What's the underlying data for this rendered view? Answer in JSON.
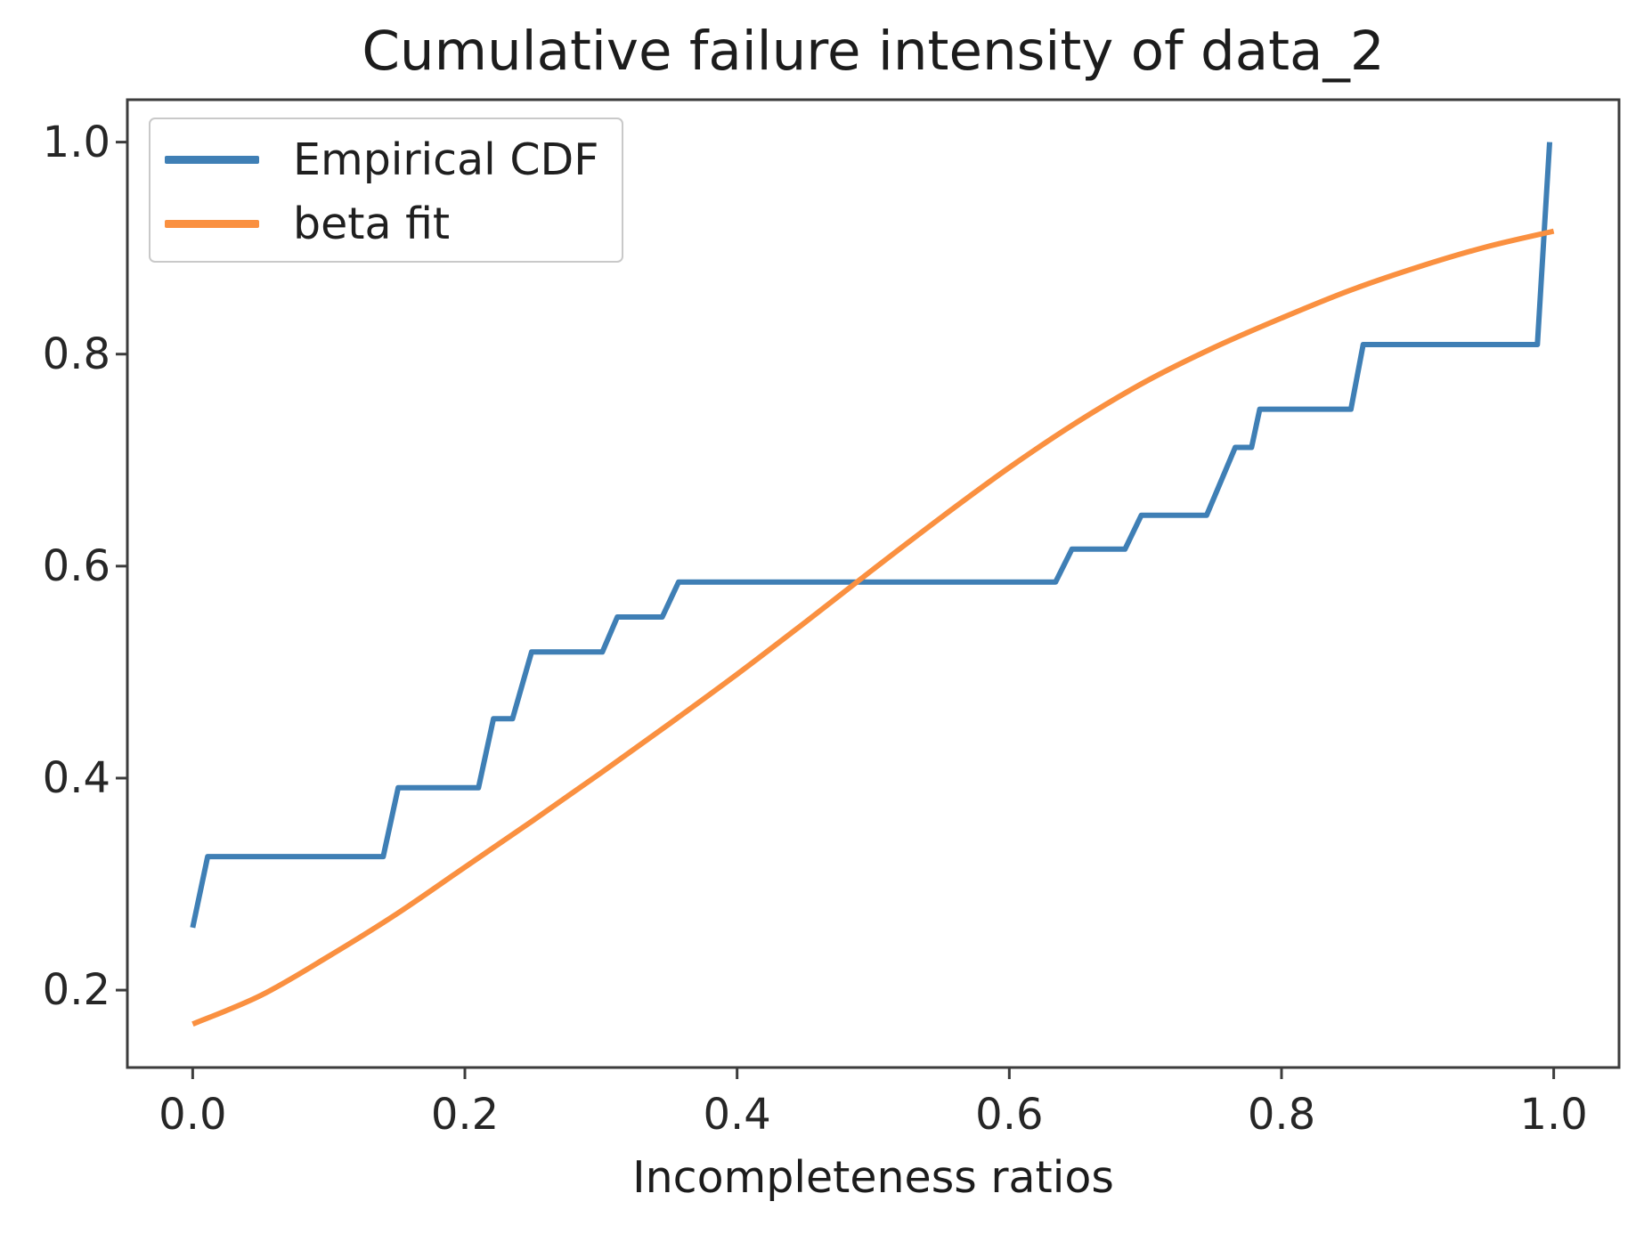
{
  "chart_data": {
    "type": "line",
    "title": "Cumulative failure intensity of data_2",
    "xlabel": "Incompleteness ratios",
    "ylabel": "",
    "xlim": [
      -0.048,
      1.048
    ],
    "ylim": [
      0.127,
      1.04
    ],
    "grid": false,
    "legend_position": "upper left",
    "axis_color": "#3c3c3c",
    "tick_label_color": "#262626",
    "x_ticks": {
      "values": [
        0.0,
        0.2,
        0.4,
        0.6,
        0.8,
        1.0
      ],
      "labels": [
        "0.0",
        "0.2",
        "0.4",
        "0.6",
        "0.8",
        "1.0"
      ]
    },
    "y_ticks": {
      "values": [
        0.2,
        0.4,
        0.6,
        0.8,
        1.0
      ],
      "labels": [
        "0.2",
        "0.4",
        "0.6",
        "0.8",
        "1.0"
      ]
    },
    "series": [
      {
        "name": "Empirical CDF",
        "type": "step-line",
        "color": "#3f7fb5",
        "smooth": false,
        "points": [
          [
            0.0,
            0.259
          ],
          [
            0.011,
            0.326
          ],
          [
            0.14,
            0.326
          ],
          [
            0.151,
            0.391
          ],
          [
            0.21,
            0.391
          ],
          [
            0.221,
            0.456
          ],
          [
            0.235,
            0.456
          ],
          [
            0.249,
            0.519
          ],
          [
            0.301,
            0.519
          ],
          [
            0.312,
            0.552
          ],
          [
            0.345,
            0.552
          ],
          [
            0.357,
            0.585
          ],
          [
            0.634,
            0.585
          ],
          [
            0.646,
            0.616
          ],
          [
            0.685,
            0.616
          ],
          [
            0.697,
            0.648
          ],
          [
            0.745,
            0.648
          ],
          [
            0.766,
            0.712
          ],
          [
            0.778,
            0.712
          ],
          [
            0.784,
            0.748
          ],
          [
            0.851,
            0.748
          ],
          [
            0.86,
            0.809
          ],
          [
            0.988,
            0.809
          ],
          [
            0.997,
            1.0
          ]
        ]
      },
      {
        "name": "beta fit",
        "type": "line",
        "color": "#fa9040",
        "smooth": true,
        "points": [
          [
            0.0,
            0.168
          ],
          [
            0.05,
            0.195
          ],
          [
            0.1,
            0.232
          ],
          [
            0.15,
            0.272
          ],
          [
            0.2,
            0.316
          ],
          [
            0.25,
            0.36
          ],
          [
            0.3,
            0.405
          ],
          [
            0.35,
            0.451
          ],
          [
            0.4,
            0.498
          ],
          [
            0.45,
            0.547
          ],
          [
            0.5,
            0.597
          ],
          [
            0.55,
            0.646
          ],
          [
            0.6,
            0.693
          ],
          [
            0.65,
            0.736
          ],
          [
            0.7,
            0.774
          ],
          [
            0.75,
            0.806
          ],
          [
            0.8,
            0.834
          ],
          [
            0.85,
            0.86
          ],
          [
            0.9,
            0.882
          ],
          [
            0.95,
            0.901
          ],
          [
            1.0,
            0.916
          ]
        ]
      }
    ]
  }
}
